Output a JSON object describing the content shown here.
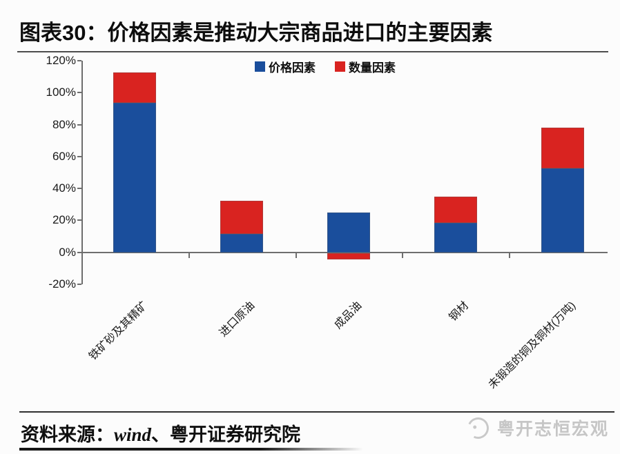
{
  "header": {
    "title": "图表30：价格因素是推动大宗商品进口的主要因素"
  },
  "chart_data": {
    "type": "bar",
    "stacked": true,
    "title": "",
    "categories": [
      "铁矿砂及其精矿",
      "进口原油",
      "成品油",
      "钢材",
      "未锻造的铜及铜材(万吨)"
    ],
    "series": [
      {
        "name": "价格因素",
        "color": "#1a4e9c",
        "values": [
          93.5,
          11.5,
          25.0,
          18.5,
          52.5
        ]
      },
      {
        "name": "数量因素",
        "color": "#d92320",
        "values": [
          19.0,
          21.0,
          -4.0,
          16.5,
          25.5
        ]
      }
    ],
    "ylim": [
      -20,
      120
    ],
    "ytick_values": [
      120,
      100,
      80,
      60,
      40,
      20,
      0,
      -20
    ],
    "ytick_labels": [
      "120%",
      "100%",
      "80%",
      "60%",
      "40%",
      "20%",
      "0%",
      "-20%"
    ],
    "legend_position": "top",
    "grid": false
  },
  "footer": {
    "source_prefix": "资料来源：",
    "source_wind": "wind",
    "source_rest": "、粤开证券研究院",
    "watermark": "粤开志恒宏观"
  }
}
